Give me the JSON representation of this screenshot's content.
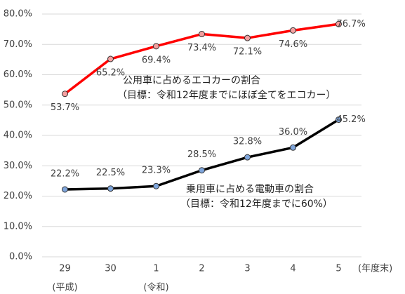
{
  "chart_data": {
    "type": "line",
    "categories": [
      "29",
      "30",
      "1",
      "2",
      "3",
      "4",
      "5"
    ],
    "x_sublabels": [
      "(平成)",
      null,
      "(令和)",
      null,
      null,
      null,
      null
    ],
    "xlabel": "(年度末)",
    "ylim": [
      0,
      80
    ],
    "yticks": [
      {
        "value": 0,
        "label": "0.0%"
      },
      {
        "value": 10,
        "label": "10.0%"
      },
      {
        "value": 20,
        "label": "20.0%"
      },
      {
        "value": 30,
        "label": "30.0%"
      },
      {
        "value": 40,
        "label": "40.0%"
      },
      {
        "value": 50,
        "label": "50.0%"
      },
      {
        "value": 60,
        "label": "60.0%"
      },
      {
        "value": 70,
        "label": "70.0%"
      },
      {
        "value": 80,
        "label": "80.0%"
      }
    ],
    "grid": true,
    "series": [
      {
        "name": "公用車に占めるエコカーの割合",
        "target": "（目標：令和12年度までにほぼ全てをエコカー）",
        "color": "#ff0000",
        "marker_color": "#f4a0a0",
        "values": [
          53.7,
          65.2,
          69.4,
          73.4,
          72.1,
          74.6,
          76.7
        ],
        "value_labels": [
          "53.7%",
          "65.2%",
          "69.4%",
          "73.4%",
          "72.1%",
          "74.6%",
          "76.7%"
        ]
      },
      {
        "name": "乗用車に占める電動車の割合",
        "target": "（目標：令和12年度までに60%）",
        "color": "#000000",
        "marker_color": "#7fa6dc",
        "values": [
          22.2,
          22.5,
          23.3,
          28.5,
          32.8,
          36.0,
          45.2
        ],
        "value_labels": [
          "22.2%",
          "22.5%",
          "23.3%",
          "28.5%",
          "32.8%",
          "36.0%",
          "45.2%"
        ]
      }
    ]
  }
}
